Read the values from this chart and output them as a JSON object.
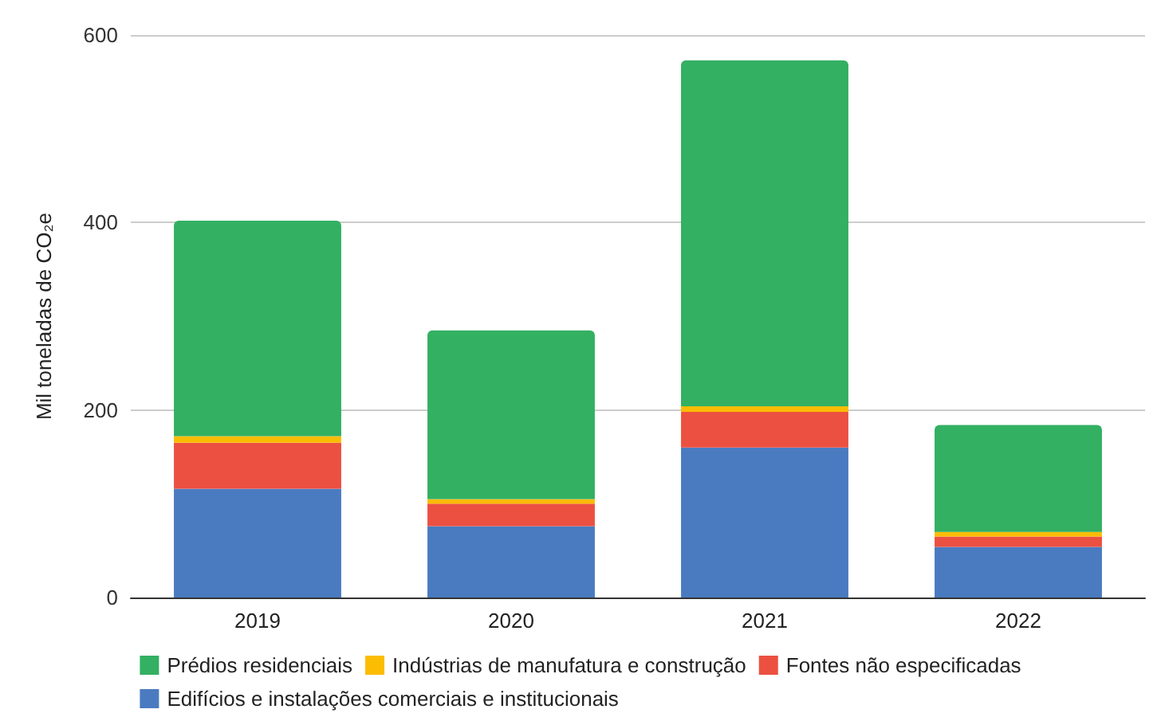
{
  "chart_data": {
    "type": "bar",
    "stacked": true,
    "ylabel": "Mil toneladas de CO₂e",
    "categories": [
      "2019",
      "2020",
      "2021",
      "2022"
    ],
    "series": [
      {
        "name": "Edifícios e instalações comerciais e institucionais",
        "color": "#4a7bc0",
        "values": [
          116,
          76,
          160,
          54
        ]
      },
      {
        "name": "Fontes não especificadas",
        "color": "#ec5041",
        "values": [
          49,
          24,
          38,
          11
        ]
      },
      {
        "name": "Indústrias de manufatura e construção",
        "color": "#fbbc04",
        "values": [
          7,
          5,
          6,
          5
        ]
      },
      {
        "name": "Prédios residenciais",
        "color": "#33b062",
        "values": [
          230,
          180,
          369,
          114
        ]
      }
    ],
    "ylim": [
      0,
      600
    ],
    "yticks": [
      0,
      200,
      400,
      600
    ],
    "grid": "y",
    "legend": "bottom"
  }
}
